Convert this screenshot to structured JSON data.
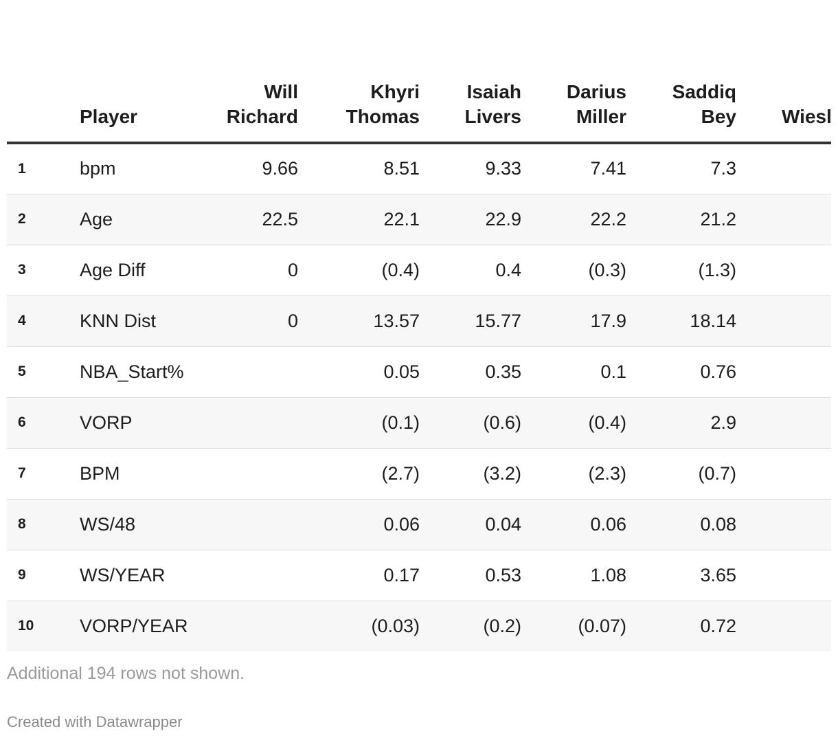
{
  "chart_data": {
    "type": "table",
    "columns": [
      {
        "label": "",
        "lines": [
          ""
        ]
      },
      {
        "label": "Player",
        "lines": [
          "Player"
        ]
      },
      {
        "label": "Will Richard",
        "lines": [
          "Will",
          "Richard"
        ]
      },
      {
        "label": "Khyri Thomas",
        "lines": [
          "Khyri",
          "Thomas"
        ]
      },
      {
        "label": "Isaiah Livers",
        "lines": [
          "Isaiah",
          "Livers"
        ]
      },
      {
        "label": "Darius Miller",
        "lines": [
          "Darius",
          "Miller"
        ]
      },
      {
        "label": "Saddiq Bey",
        "lines": [
          "Saddiq",
          "Bey"
        ]
      },
      {
        "label": "Wiesl",
        "lines": [
          "Wiesl"
        ]
      }
    ],
    "rows": [
      {
        "index": "1",
        "player": "bpm",
        "values": [
          "9.66",
          "8.51",
          "9.33",
          "7.41",
          "7.3",
          ""
        ]
      },
      {
        "index": "2",
        "player": "Age",
        "values": [
          "22.5",
          "22.1",
          "22.9",
          "22.2",
          "21.2",
          ""
        ]
      },
      {
        "index": "3",
        "player": "Age Diff",
        "values": [
          "0",
          "(0.4)",
          "0.4",
          "(0.3)",
          "(1.3)",
          ""
        ]
      },
      {
        "index": "4",
        "player": "KNN Dist",
        "values": [
          "0",
          "13.57",
          "15.77",
          "17.9",
          "18.14",
          ""
        ]
      },
      {
        "index": "5",
        "player": "NBA_Start%",
        "values": [
          "",
          "0.05",
          "0.35",
          "0.1",
          "0.76",
          ""
        ]
      },
      {
        "index": "6",
        "player": "VORP",
        "values": [
          "",
          "(0.1)",
          "(0.6)",
          "(0.4)",
          "2.9",
          ""
        ]
      },
      {
        "index": "7",
        "player": "BPM",
        "values": [
          "",
          "(2.7)",
          "(3.2)",
          "(2.3)",
          "(0.7)",
          ""
        ]
      },
      {
        "index": "8",
        "player": "WS/48",
        "values": [
          "",
          "0.06",
          "0.04",
          "0.06",
          "0.08",
          ""
        ]
      },
      {
        "index": "9",
        "player": "WS/YEAR",
        "values": [
          "",
          "0.17",
          "0.53",
          "1.08",
          "3.65",
          ""
        ]
      },
      {
        "index": "10",
        "player": "VORP/YEAR",
        "values": [
          "",
          "(0.03)",
          "(0.2)",
          "(0.07)",
          "0.72",
          ""
        ]
      }
    ]
  },
  "footer": {
    "note": "Additional 194 rows not shown.",
    "credit": "Created with Datawrapper"
  },
  "colors": {
    "header_rule": "#333333",
    "row_divider": "#dddddd",
    "stripe": "#f7f7f7",
    "muted_text": "#9a9a9a"
  }
}
